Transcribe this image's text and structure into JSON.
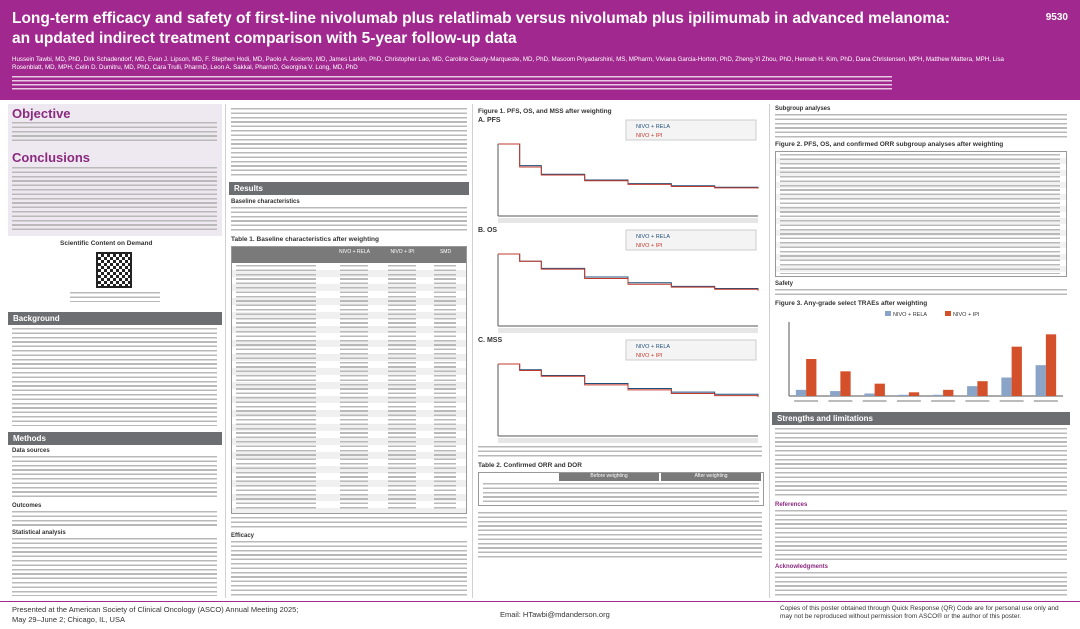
{
  "header": {
    "title_line1": "Long-term efficacy and safety of first-line nivolumab plus relatlimab versus nivolumab plus ipilimumab in advanced melanoma:",
    "title_line2": "an updated indirect treatment comparison with 5-year follow-up data",
    "poster_number": "9530",
    "authors": "Hussein Tawbi, MD, PhD, Dirk Schadendorf, MD, Evan J. Lipson, MD, F. Stephen Hodi, MD, Paolo A. Ascierto, MD, James Larkin, PhD, Christopher Lao, MD, Caroline Gaudy-Marqueste, MD, PhD, Masoom Priyadarshini, MS, MPharm, Viviana Garcia-Horton, PhD, Zheng-Yi Zhou, PhD, Hennah H. Kim, PhD, Dana Christensen, MPH, Matthew Mattera, MPH, Lisa Rosenblatt, MD, MPH, Celin D. Dumitru, MD, PhD, Cara Trulli, PharmD, Leon A. Sakkal, PharmD, Georgina V. Long, MD, PhD"
  },
  "sections": {
    "objective": "Objective",
    "conclusions": "Conclusions",
    "qr": "Scientific Content on Demand",
    "background": "Background",
    "methods": "Methods",
    "data_sources": "Data sources",
    "outcomes": "Outcomes",
    "statistical_analysis": "Statistical analysis",
    "results": "Results",
    "baseline": "Baseline characteristics",
    "efficacy": "Efficacy",
    "subgroup": "Subgroup analyses",
    "safety": "Safety",
    "strengths": "Strengths and limitations",
    "references": "References",
    "acknowledgments": "Acknowledgments"
  },
  "figures": {
    "table1_title": "Table 1. Baseline characteristics after weighting",
    "table1_headers": [
      "NIVO + RELA",
      "NIVO + IPI",
      "SMD"
    ],
    "figure1_title": "Figure 1. PFS, OS, and MSS after weighting",
    "table2_title": "Table 2. Confirmed ORR and DOR",
    "table2_headers": [
      "Before weighting",
      "After weighting"
    ],
    "figure2_title": "Figure 2. PFS, OS, and confirmed ORR subgroup analyses after weighting",
    "figure3_title": "Figure 3. Any-grade select TRAEs after weighting"
  },
  "figure1": {
    "xlim": [
      0,
      72
    ],
    "ylim": [
      0,
      1
    ],
    "panels": [
      {
        "label": "A. PFS",
        "x": [
          0,
          6,
          12,
          24,
          36,
          48,
          60,
          72
        ],
        "series": [
          {
            "name": "NIVO + RELA",
            "color": "#1f4e79",
            "values": [
              1,
              0.7,
              0.58,
              0.5,
              0.45,
              0.42,
              0.4,
              0.39
            ]
          },
          {
            "name": "NIVO + IPI",
            "color": "#c0392b",
            "values": [
              1,
              0.68,
              0.57,
              0.49,
              0.44,
              0.41,
              0.39,
              0.38
            ]
          }
        ]
      },
      {
        "label": "B. OS",
        "x": [
          0,
          6,
          12,
          24,
          36,
          48,
          60,
          72
        ],
        "series": [
          {
            "name": "NIVO + RELA",
            "color": "#1f4e79",
            "values": [
              1,
              0.9,
              0.8,
              0.68,
              0.6,
              0.55,
              0.52,
              0.5
            ]
          },
          {
            "name": "NIVO + IPI",
            "color": "#c0392b",
            "values": [
              1,
              0.9,
              0.79,
              0.66,
              0.58,
              0.54,
              0.51,
              0.49
            ]
          }
        ]
      },
      {
        "label": "C. MSS",
        "x": [
          0,
          6,
          12,
          24,
          36,
          48,
          60,
          72
        ],
        "series": [
          {
            "name": "NIVO + RELA",
            "color": "#1f4e79",
            "values": [
              1,
              0.92,
              0.84,
              0.73,
              0.66,
              0.61,
              0.58,
              0.56
            ]
          },
          {
            "name": "NIVO + IPI",
            "color": "#c0392b",
            "values": [
              1,
              0.91,
              0.83,
              0.71,
              0.64,
              0.59,
              0.56,
              0.54
            ]
          }
        ]
      }
    ]
  },
  "figure3": {
    "type": "bar",
    "categories": [
      null,
      null,
      null,
      null,
      null,
      null,
      null,
      null
    ],
    "ylim": [
      0,
      60
    ],
    "series": [
      {
        "name": "NIVO + RELA",
        "color": "#8aa4c8",
        "values": [
          5,
          4,
          2,
          1,
          1,
          8,
          15,
          25
        ]
      },
      {
        "name": "NIVO + IPI",
        "color": "#d4502a",
        "values": [
          30,
          20,
          10,
          3,
          5,
          12,
          40,
          50
        ]
      }
    ]
  },
  "footer": {
    "left_line1": "Presented at the American Society of Clinical Oncology (ASCO) Annual Meeting 2025;",
    "left_line2": "May 29–June 2; Chicago, IL, USA",
    "email": "Email: HTawbi@mdanderson.org",
    "right": "Copies of this poster obtained through Quick Response (QR) Code are for personal use only and may not be reproduced without permission from ASCO® or the author of this poster."
  }
}
